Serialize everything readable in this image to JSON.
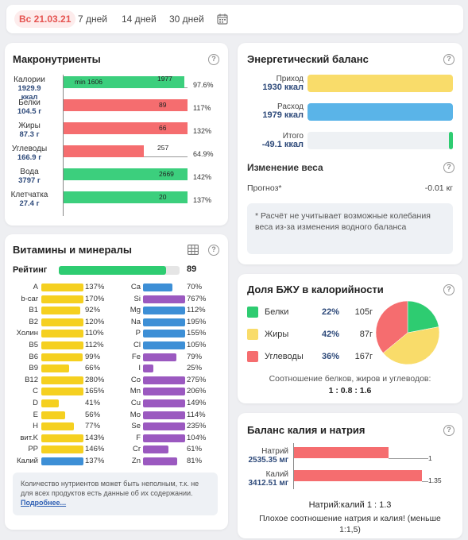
{
  "tabs": {
    "active": "Вс 21.03.21",
    "days7": "7 дней",
    "days14": "14 дней",
    "days30": "30 дней"
  },
  "macro": {
    "title": "Макронутриенты",
    "help": "?",
    "items": [
      {
        "name": "Калории",
        "amount": "1929.9",
        "unit": "ккал",
        "bar_label": "min 1606",
        "target": "1977",
        "pct": "97.6%",
        "fraction": 0.976,
        "color": "#3ccf7d"
      },
      {
        "name": "Белки",
        "amount": "104.5 г",
        "target": "89",
        "pct": "117%",
        "fraction": 1.17,
        "color": "#f56d6f"
      },
      {
        "name": "Жиры",
        "amount": "87.3 г",
        "target": "66",
        "pct": "132%",
        "fraction": 1.32,
        "color": "#f56d6f"
      },
      {
        "name": "Углеводы",
        "amount": "166.9 г",
        "target": "257",
        "pct": "64.9%",
        "fraction": 0.649,
        "color": "#f56d6f"
      },
      {
        "name": "Вода",
        "amount": "3797 г",
        "target": "2669",
        "pct": "142%",
        "fraction": 1.42,
        "color": "#3ccf7d"
      },
      {
        "name": "Клетчатка",
        "amount": "27.4 г",
        "target": "20",
        "pct": "137%",
        "fraction": 1.37,
        "color": "#3ccf7d"
      }
    ]
  },
  "vitamins": {
    "title": "Витамины и минералы",
    "rating_label": "Рейтинг",
    "rating_value": "89",
    "rating_fraction": 0.89,
    "note": "Количество нутриентов может быть неполным, т.к. не для всех продуктов есть данные об их содержании.",
    "more_link": "Подробнее...",
    "left": [
      {
        "name": "A",
        "pct": "137%",
        "fraction": 1.37,
        "color": "#f5d020"
      },
      {
        "name": "b-car",
        "pct": "170%",
        "fraction": 1.7,
        "color": "#f5d020"
      },
      {
        "name": "B1",
        "pct": "92%",
        "fraction": 0.92,
        "color": "#f5d020"
      },
      {
        "name": "B2",
        "pct": "120%",
        "fraction": 1.2,
        "color": "#f5d020"
      },
      {
        "name": "Холин",
        "pct": "110%",
        "fraction": 1.1,
        "color": "#f5d020"
      },
      {
        "name": "B5",
        "pct": "112%",
        "fraction": 1.12,
        "color": "#f5d020"
      },
      {
        "name": "B6",
        "pct": "99%",
        "fraction": 0.99,
        "color": "#f5d020"
      },
      {
        "name": "B9",
        "pct": "66%",
        "fraction": 0.66,
        "color": "#f5d020"
      },
      {
        "name": "B12",
        "pct": "280%",
        "fraction": 2.8,
        "color": "#f5d020"
      },
      {
        "name": "C",
        "pct": "165%",
        "fraction": 1.65,
        "color": "#f5d020"
      },
      {
        "name": "D",
        "pct": "41%",
        "fraction": 0.41,
        "color": "#f5d020"
      },
      {
        "name": "E",
        "pct": "56%",
        "fraction": 0.56,
        "color": "#f5d020"
      },
      {
        "name": "H",
        "pct": "77%",
        "fraction": 0.77,
        "color": "#f5d020"
      },
      {
        "name": "вит.K",
        "pct": "143%",
        "fraction": 1.43,
        "color": "#f5d020"
      },
      {
        "name": "PP",
        "pct": "146%",
        "fraction": 1.46,
        "color": "#f5d020"
      },
      {
        "name": "Калий",
        "pct": "137%",
        "fraction": 1.37,
        "color": "#3d8fd6"
      }
    ],
    "right": [
      {
        "name": "Ca",
        "pct": "70%",
        "fraction": 0.7,
        "color": "#3d8fd6"
      },
      {
        "name": "Si",
        "pct": "767%",
        "fraction": 7.67,
        "color": "#9b59c0"
      },
      {
        "name": "Mg",
        "pct": "112%",
        "fraction": 1.12,
        "color": "#3d8fd6"
      },
      {
        "name": "Na",
        "pct": "195%",
        "fraction": 1.95,
        "color": "#3d8fd6"
      },
      {
        "name": "P",
        "pct": "155%",
        "fraction": 1.55,
        "color": "#3d8fd6"
      },
      {
        "name": "Cl",
        "pct": "105%",
        "fraction": 1.05,
        "color": "#3d8fd6"
      },
      {
        "name": "Fe",
        "pct": "79%",
        "fraction": 0.79,
        "color": "#9b59c0"
      },
      {
        "name": "I",
        "pct": "25%",
        "fraction": 0.25,
        "color": "#9b59c0"
      },
      {
        "name": "Co",
        "pct": "275%",
        "fraction": 2.75,
        "color": "#9b59c0"
      },
      {
        "name": "Mn",
        "pct": "206%",
        "fraction": 2.06,
        "color": "#9b59c0"
      },
      {
        "name": "Cu",
        "pct": "149%",
        "fraction": 1.49,
        "color": "#9b59c0"
      },
      {
        "name": "Mo",
        "pct": "114%",
        "fraction": 1.14,
        "color": "#9b59c0"
      },
      {
        "name": "Se",
        "pct": "235%",
        "fraction": 2.35,
        "color": "#9b59c0"
      },
      {
        "name": "F",
        "pct": "104%",
        "fraction": 1.04,
        "color": "#9b59c0"
      },
      {
        "name": "Cr",
        "pct": "61%",
        "fraction": 0.61,
        "color": "#9b59c0"
      },
      {
        "name": "Zn",
        "pct": "81%",
        "fraction": 0.81,
        "color": "#9b59c0"
      }
    ]
  },
  "energy": {
    "title": "Энергетический баланс",
    "income_label": "Приход",
    "income_value": "1930 ккал",
    "expense_label": "Расход",
    "expense_value": "1979 ккал",
    "total_label": "Итого",
    "total_value": "-49.1 ккал",
    "weight_title": "Изменение веса",
    "forecast_label": "Прогноз*",
    "forecast_value": "-0.01 кг",
    "footnote": "* Расчёт не учитывает возможные колебания веса из-за изменения водного баланса"
  },
  "bju": {
    "title": "Доля БЖУ в калорийности",
    "items": [
      {
        "name": "Белки",
        "pct": "22%",
        "grams": "105г",
        "fraction": 0.22,
        "color": "#2ecc71"
      },
      {
        "name": "Жиры",
        "pct": "42%",
        "grams": "87г",
        "fraction": 0.42,
        "color": "#f9dc6a"
      },
      {
        "name": "Углеводы",
        "pct": "36%",
        "grams": "167г",
        "fraction": 0.36,
        "color": "#f56d6f"
      }
    ],
    "ratio_caption": "Соотношение белков, жиров и углеводов:",
    "ratio_value": "1 : 0.8 : 1.6"
  },
  "kna": {
    "title": "Баланс калия и натрия",
    "sodium_label": "Натрий",
    "sodium_value": "2535.35 мг",
    "sodium_ratio": "1",
    "potassium_label": "Калий",
    "potassium_value": "3412.51 мг",
    "potassium_ratio": "1.35",
    "ratio_text": "Натрий:калий 1 : 1.3",
    "warning": "Плохое соотношение натрия и калия! (меньше 1:1,5)"
  }
}
